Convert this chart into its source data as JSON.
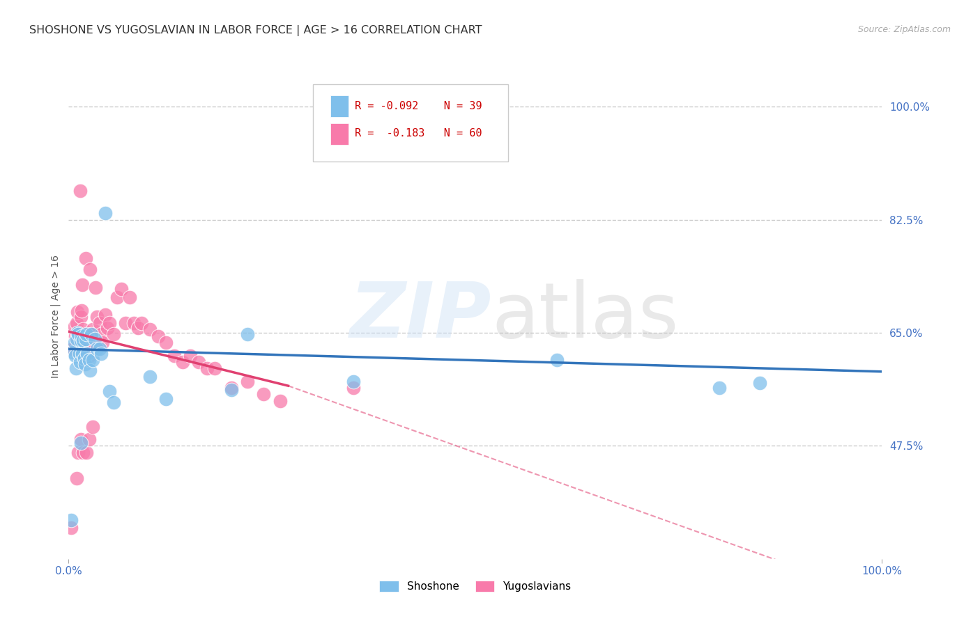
{
  "title": "SHOSHONE VS YUGOSLAVIAN IN LABOR FORCE | AGE > 16 CORRELATION CHART",
  "source": "Source: ZipAtlas.com",
  "ylabel": "In Labor Force | Age > 16",
  "y_tick_labels": [
    "100.0%",
    "82.5%",
    "65.0%",
    "47.5%"
  ],
  "y_tick_values": [
    1.0,
    0.825,
    0.65,
    0.475
  ],
  "xlim": [
    0.0,
    1.0
  ],
  "ylim": [
    0.3,
    1.05
  ],
  "shoshone_color": "#7fbfeb",
  "yugoslavian_color": "#f87aaa",
  "blue_line_color": "#3375bb",
  "pink_line_color": "#e04070",
  "grid_color": "#cccccc",
  "bg_color": "#ffffff",
  "axis_label_color": "#4472c4",
  "title_fontsize": 11.5,
  "tick_fontsize": 11,
  "source_fontsize": 9,
  "shoshone_x": [
    0.003,
    0.005,
    0.007,
    0.008,
    0.009,
    0.01,
    0.011,
    0.012,
    0.013,
    0.014,
    0.015,
    0.016,
    0.017,
    0.018,
    0.019,
    0.02,
    0.021,
    0.022,
    0.023,
    0.025,
    0.026,
    0.028,
    0.03,
    0.032,
    0.035,
    0.038,
    0.04,
    0.045,
    0.05,
    0.055,
    0.1,
    0.12,
    0.2,
    0.22,
    0.35,
    0.6,
    0.8,
    0.85,
    0.015
  ],
  "shoshone_y": [
    0.36,
    0.62,
    0.635,
    0.615,
    0.595,
    0.64,
    0.65,
    0.648,
    0.618,
    0.605,
    0.638,
    0.645,
    0.618,
    0.638,
    0.61,
    0.602,
    0.64,
    0.648,
    0.618,
    0.608,
    0.592,
    0.648,
    0.608,
    0.64,
    0.625,
    0.625,
    0.618,
    0.836,
    0.56,
    0.542,
    0.582,
    0.548,
    0.562,
    0.648,
    0.575,
    0.608,
    0.565,
    0.572,
    0.48
  ],
  "yugoslavian_x": [
    0.003,
    0.005,
    0.007,
    0.008,
    0.01,
    0.011,
    0.012,
    0.013,
    0.014,
    0.015,
    0.016,
    0.017,
    0.018,
    0.019,
    0.02,
    0.021,
    0.022,
    0.023,
    0.025,
    0.026,
    0.028,
    0.03,
    0.032,
    0.033,
    0.035,
    0.038,
    0.04,
    0.042,
    0.045,
    0.048,
    0.05,
    0.055,
    0.06,
    0.065,
    0.07,
    0.075,
    0.08,
    0.085,
    0.09,
    0.1,
    0.11,
    0.12,
    0.13,
    0.14,
    0.15,
    0.16,
    0.17,
    0.18,
    0.2,
    0.22,
    0.24,
    0.26,
    0.35,
    0.01,
    0.012,
    0.015,
    0.018,
    0.022,
    0.025,
    0.03
  ],
  "yugoslavian_y": [
    0.348,
    0.625,
    0.66,
    0.645,
    0.665,
    0.682,
    0.648,
    0.632,
    0.87,
    0.675,
    0.685,
    0.725,
    0.655,
    0.625,
    0.625,
    0.765,
    0.632,
    0.645,
    0.615,
    0.748,
    0.648,
    0.655,
    0.632,
    0.72,
    0.675,
    0.665,
    0.648,
    0.635,
    0.678,
    0.658,
    0.665,
    0.648,
    0.705,
    0.718,
    0.665,
    0.705,
    0.665,
    0.658,
    0.665,
    0.655,
    0.645,
    0.635,
    0.615,
    0.605,
    0.615,
    0.605,
    0.595,
    0.595,
    0.565,
    0.575,
    0.555,
    0.545,
    0.565,
    0.425,
    0.465,
    0.485,
    0.465,
    0.465,
    0.485,
    0.505
  ]
}
